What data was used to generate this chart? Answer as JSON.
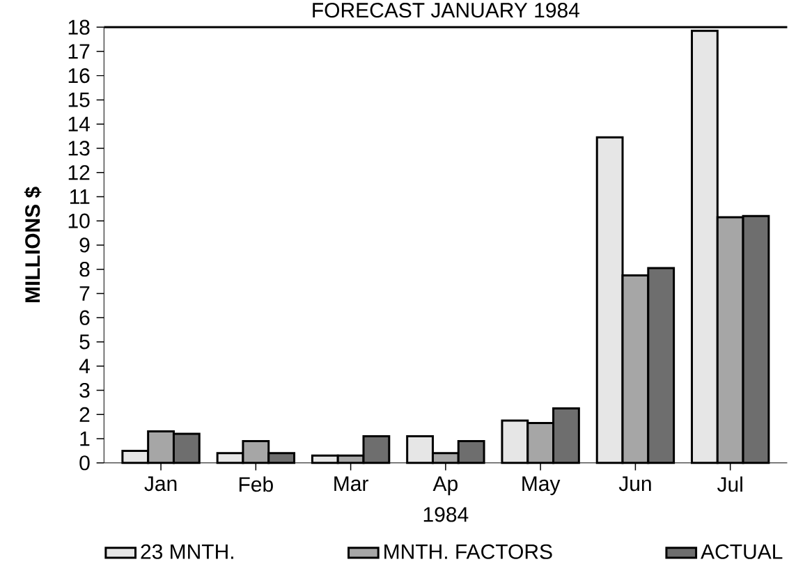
{
  "chart_data": {
    "type": "bar",
    "title": "FORECAST JANUARY 1984",
    "xlabel": "1984",
    "ylabel": "MILLIONS $",
    "categories": [
      "Jan",
      "Feb",
      "Mar",
      "Ap",
      "May",
      "Jun",
      "Jul"
    ],
    "series": [
      {
        "name": "23 MNTH.",
        "color": "#e6e6e6",
        "values": [
          0.5,
          0.4,
          0.3,
          1.1,
          1.75,
          13.45,
          17.85
        ]
      },
      {
        "name": "MNTH. FACTORS",
        "color": "#a6a6a6",
        "values": [
          1.3,
          0.9,
          0.3,
          0.4,
          1.65,
          7.75,
          10.15
        ]
      },
      {
        "name": "ACTUAL",
        "color": "#6e6e6e",
        "values": [
          1.2,
          0.4,
          1.1,
          0.9,
          2.25,
          8.05,
          10.2
        ]
      }
    ],
    "ylim": [
      0,
      18
    ],
    "yticks": [
      0,
      1,
      2,
      3,
      4,
      5,
      6,
      7,
      8,
      9,
      10,
      11,
      12,
      13,
      14,
      15,
      16,
      17,
      18
    ],
    "grid": false,
    "legend": "bottom"
  }
}
